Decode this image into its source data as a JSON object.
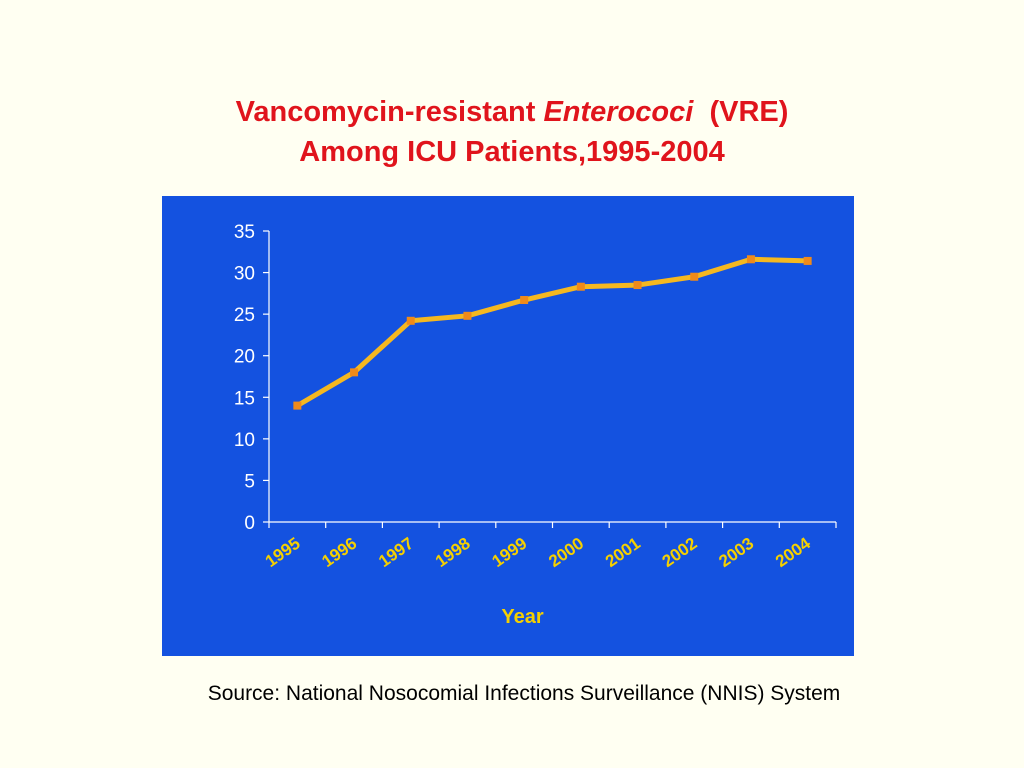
{
  "title": {
    "part1": "Vancomycin-resistant ",
    "part2_italic": "Enterococi",
    "part3": "  (VRE)",
    "line2": "Among ICU Patients,1995-2004"
  },
  "source": "Source: National Nosocomial Infections Surveillance (NNIS) System",
  "colors": {
    "title": "#e0141c",
    "panel": "#1452e0",
    "line": "#f5b820",
    "marker": "#f08a1a",
    "axis_text": "#ffffff",
    "xlabel_text": "#f5d000"
  },
  "chart_data": {
    "type": "line",
    "categories": [
      "1995",
      "1996",
      "1997",
      "1998",
      "1999",
      "2000",
      "2001",
      "2002",
      "2003",
      "2004"
    ],
    "series": [
      {
        "values": [
          14.0,
          18.0,
          24.2,
          24.8,
          26.7,
          28.3,
          28.5,
          29.5,
          31.6,
          31.4
        ]
      }
    ],
    "xlabel": "Year",
    "ylabel": "",
    "ylim": [
      0,
      35
    ],
    "yticks": [
      0,
      5,
      10,
      15,
      20,
      25,
      30,
      35
    ],
    "grid": false,
    "legend": "none"
  }
}
